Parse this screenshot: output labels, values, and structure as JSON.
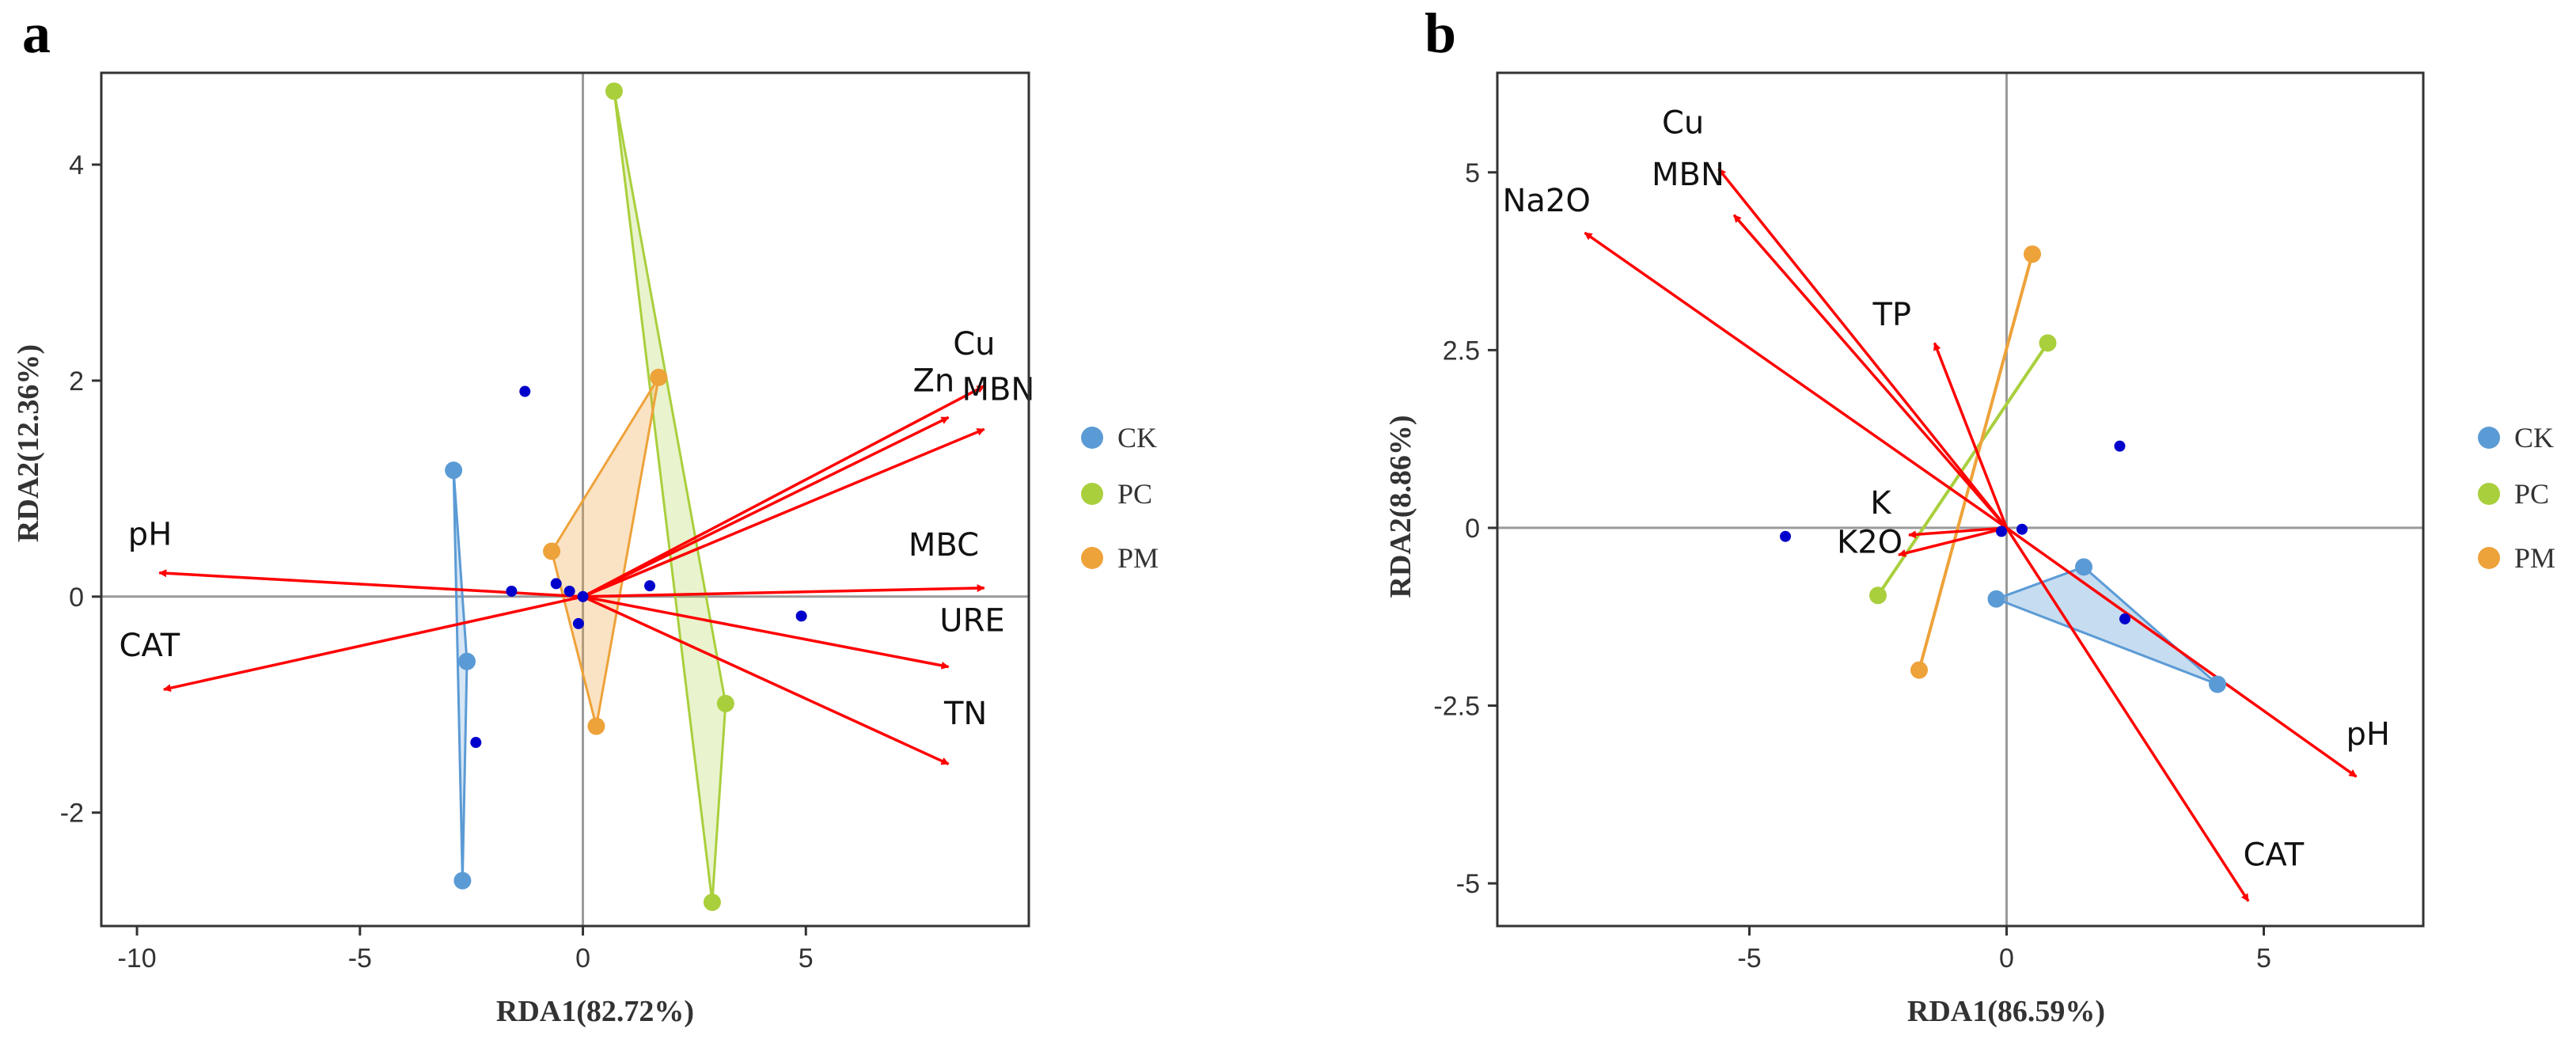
{
  "chart_data": [
    {
      "panel": "a",
      "type": "scatter",
      "title": "",
      "xlabel": "RDA1(82.72%)",
      "ylabel": "RDA2(12.36%)",
      "xlim": [
        -10.8,
        10
      ],
      "ylim": [
        -3.05,
        4.85
      ],
      "xticks": [
        -10,
        -5,
        0,
        5
      ],
      "yticks": [
        -2,
        0,
        2,
        4
      ],
      "xtick_labels": [
        "-10",
        "-5",
        "0",
        "5"
      ],
      "ytick_labels": [
        "-2",
        "0",
        "2",
        "4"
      ],
      "grid": false,
      "legend_position": "right",
      "groups": [
        {
          "name": "CK",
          "color": "#5b9bd5",
          "fill_opacity": 0.25,
          "points": [
            [
              -2.9,
              1.17
            ],
            [
              -2.6,
              -0.6
            ],
            [
              -2.7,
              -2.63
            ]
          ]
        },
        {
          "name": "PC",
          "color": "#a9cf3c",
          "fill_opacity": 0.25,
          "points": [
            [
              0.7,
              4.68
            ],
            [
              3.2,
              -0.99
            ],
            [
              2.9,
              -2.83
            ]
          ]
        },
        {
          "name": "PM",
          "color": "#eea23a",
          "fill_opacity": 0.3,
          "points": [
            [
              1.7,
              2.03
            ],
            [
              -0.7,
              0.42
            ],
            [
              0.3,
              -1.2
            ]
          ]
        }
      ],
      "sites": [
        [
          -1.3,
          1.9
        ],
        [
          -1.6,
          0.05
        ],
        [
          -0.6,
          0.12
        ],
        [
          -0.3,
          0.05
        ],
        [
          -0.1,
          -0.25
        ],
        [
          1.5,
          0.1
        ],
        [
          4.9,
          -0.18
        ],
        [
          -2.4,
          -1.35
        ],
        [
          0.0,
          0.0
        ]
      ],
      "site_color": "#0000cc",
      "arrow_color": "#ff0000",
      "arrows": [
        {
          "name": "Cu",
          "end": [
            9.0,
            1.95
          ],
          "label": [
            8.3,
            2.24
          ]
        },
        {
          "name": "Zn",
          "end": [
            8.2,
            1.66
          ],
          "label": [
            7.4,
            1.9
          ]
        },
        {
          "name": "MBN",
          "end": [
            9.0,
            1.55
          ],
          "label": [
            8.5,
            1.82
          ]
        },
        {
          "name": "pH",
          "end": [
            -9.5,
            0.22
          ],
          "label": [
            -10.2,
            0.48
          ]
        },
        {
          "name": "MBC",
          "end": [
            9.0,
            0.08
          ],
          "label": [
            7.3,
            0.38
          ]
        },
        {
          "name": "CAT",
          "end": [
            -9.4,
            -0.86
          ],
          "label": [
            -10.4,
            -0.55
          ]
        },
        {
          "name": "URE",
          "end": [
            8.2,
            -0.65
          ],
          "label": [
            8.0,
            -0.32
          ]
        },
        {
          "name": "TN",
          "end": [
            8.2,
            -1.55
          ],
          "label": [
            8.1,
            -1.18
          ]
        }
      ]
    },
    {
      "panel": "b",
      "type": "scatter",
      "title": "",
      "xlabel": "RDA1(86.59%)",
      "ylabel": "RDA2(8.86%)",
      "xlim": [
        -9.9,
        8.1
      ],
      "ylim": [
        -5.6,
        6.4
      ],
      "xticks": [
        -5,
        0,
        5
      ],
      "yticks": [
        -5,
        -2.5,
        0,
        2.5,
        5
      ],
      "xtick_labels": [
        "-5",
        "0",
        "5"
      ],
      "ytick_labels": [
        "-5",
        "-2.5",
        "0",
        "2.5",
        "5"
      ],
      "grid": false,
      "legend_position": "right",
      "groups": [
        {
          "name": "CK",
          "color": "#5b9bd5",
          "fill_opacity": 0.35,
          "points": [
            [
              1.5,
              -0.55
            ],
            [
              4.1,
              -2.2
            ],
            [
              -0.2,
              -1.0
            ]
          ]
        },
        {
          "name": "PC",
          "color": "#a9cf3c",
          "fill_opacity": 0.25,
          "points": [
            [
              0.8,
              2.6
            ],
            [
              -2.5,
              -0.95
            ]
          ]
        },
        {
          "name": "PM",
          "color": "#eea23a",
          "fill_opacity": 0.3,
          "points": [
            [
              0.5,
              3.85
            ],
            [
              -1.7,
              -2.0
            ]
          ]
        }
      ],
      "sites": [
        [
          -4.3,
          -0.12
        ],
        [
          2.2,
          1.15
        ],
        [
          0.3,
          -0.02
        ],
        [
          -0.1,
          -0.05
        ],
        [
          2.3,
          -1.28
        ]
      ],
      "site_color": "#0000cc",
      "arrow_color": "#ff0000",
      "arrows": [
        {
          "name": "Cu",
          "end": [
            -5.6,
            5.05
          ],
          "label": [
            -6.7,
            5.55
          ]
        },
        {
          "name": "MBN",
          "end": [
            -5.3,
            4.4
          ],
          "label": [
            -6.9,
            4.82
          ]
        },
        {
          "name": "Na2O",
          "end": [
            -8.2,
            4.15
          ],
          "label": [
            -9.8,
            4.45
          ]
        },
        {
          "name": "TP",
          "end": [
            -1.4,
            2.6
          ],
          "label": [
            -2.6,
            2.85
          ]
        },
        {
          "name": "K",
          "end": [
            -1.9,
            -0.1
          ],
          "label": [
            -2.65,
            0.2
          ]
        },
        {
          "name": "K2O",
          "end": [
            -2.1,
            -0.38
          ],
          "label": [
            -3.3,
            -0.35
          ]
        },
        {
          "name": "pH",
          "end": [
            6.8,
            -3.5
          ],
          "label": [
            6.6,
            -3.05
          ]
        },
        {
          "name": "CAT",
          "end": [
            4.7,
            -5.25
          ],
          "label": [
            4.6,
            -4.75
          ]
        }
      ]
    }
  ],
  "panels": [
    {
      "letter": "a",
      "legend": [
        "CK",
        "PC",
        "PM"
      ]
    },
    {
      "letter": "b",
      "legend": [
        "CK",
        "PC",
        "PM"
      ]
    }
  ]
}
